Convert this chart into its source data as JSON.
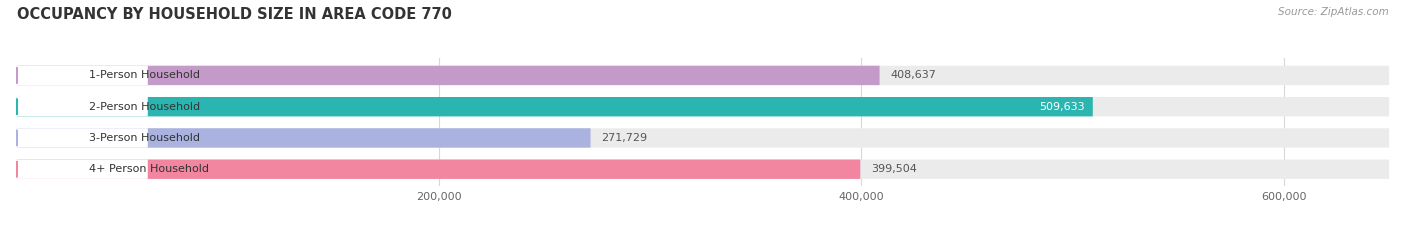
{
  "title": "OCCUPANCY BY HOUSEHOLD SIZE IN AREA CODE 770",
  "source": "Source: ZipAtlas.com",
  "categories": [
    "1-Person Household",
    "2-Person Household",
    "3-Person Household",
    "4+ Person Household"
  ],
  "values": [
    408637,
    509633,
    271729,
    399504
  ],
  "bar_colors": [
    "#c49ac8",
    "#2bb5b0",
    "#aab2e0",
    "#f285a0"
  ],
  "label_colors": [
    "#444444",
    "#ffffff",
    "#444444",
    "#444444"
  ],
  "xlim": [
    0,
    650000
  ],
  "xticks": [
    200000,
    400000,
    600000
  ],
  "xtick_labels": [
    "200,000",
    "400,000",
    "600,000"
  ],
  "title_fontsize": 10.5,
  "label_fontsize": 8.0,
  "value_fontsize": 8.0,
  "source_fontsize": 7.5,
  "bar_height": 0.62,
  "background_color": "#ffffff",
  "bar_bg_color": "#ebebeb",
  "grid_color": "#d8d8d8"
}
